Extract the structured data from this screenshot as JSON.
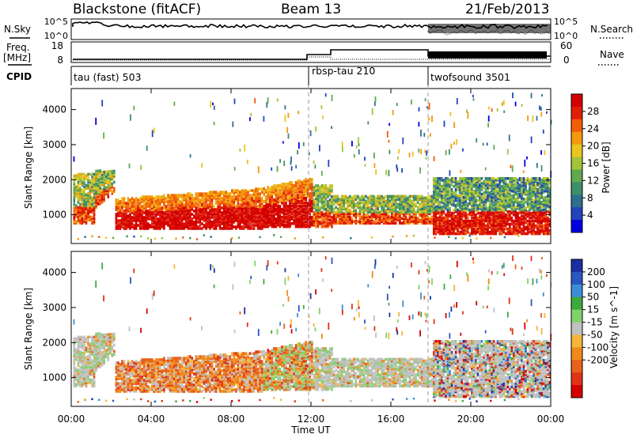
{
  "header": {
    "station": "Blackstone (fitACF)",
    "beam": "Beam 13",
    "date": "21/Feb/2013"
  },
  "nsky_panel": {
    "label": "N.Sky",
    "left_ticks": [
      "10^5",
      "10^0"
    ],
    "right_ticks": [
      "10^5",
      "10^0"
    ],
    "right_label": "N.Search"
  },
  "freq_panel": {
    "label_line1": "Freq.",
    "label_line2": "[MHz]",
    "left_ticks": [
      "18",
      "8"
    ],
    "right_ticks": [
      "60",
      "0"
    ],
    "right_label": "Nave"
  },
  "cpid": {
    "label": "CPID",
    "segments": [
      "tau (fast) 503",
      "rbsp-tau 210",
      "twofsound 3501"
    ]
  },
  "chart_data": [
    {
      "type": "heatmap",
      "title": "",
      "xlabel": "",
      "ylabel": "Slant Range [km]",
      "x": [
        "00:00",
        "04:00",
        "08:00",
        "12:00",
        "16:00",
        "20:00",
        "00:00"
      ],
      "y_ticks": [
        1000,
        2000,
        3000,
        4000
      ],
      "ylim": [
        180,
        4600
      ],
      "colorbar": {
        "label": "Power [dB]",
        "range": [
          0,
          32
        ],
        "ticks": [
          4,
          8,
          12,
          16,
          20,
          24,
          28
        ],
        "colors": [
          "#0000e0",
          "#2244bb",
          "#2e6f8e",
          "#3d8f6a",
          "#62a84e",
          "#a2c438",
          "#e8c61c",
          "#f39a0c",
          "#f25d07",
          "#e01e05",
          "#d40000"
        ]
      }
    },
    {
      "type": "heatmap",
      "title": "",
      "xlabel": "Time UT",
      "ylabel": "Slant Range [km]",
      "x": [
        "00:00",
        "04:00",
        "08:00",
        "12:00",
        "16:00",
        "20:00",
        "00:00"
      ],
      "y_ticks": [
        1000,
        2000,
        3000,
        4000
      ],
      "ylim": [
        180,
        4600
      ],
      "colorbar": {
        "label": "Velocity [m s^-1]",
        "ticks": [
          200,
          100,
          50,
          15,
          -15,
          -50,
          -100,
          -200
        ],
        "colors": [
          "#1c2fa0",
          "#2a56c0",
          "#3a8fd6",
          "#3fa83f",
          "#7fd36a",
          "#c0c0c0",
          "#f5b53a",
          "#f08a1a",
          "#e8601a",
          "#e03318",
          "#d40000"
        ]
      }
    }
  ]
}
